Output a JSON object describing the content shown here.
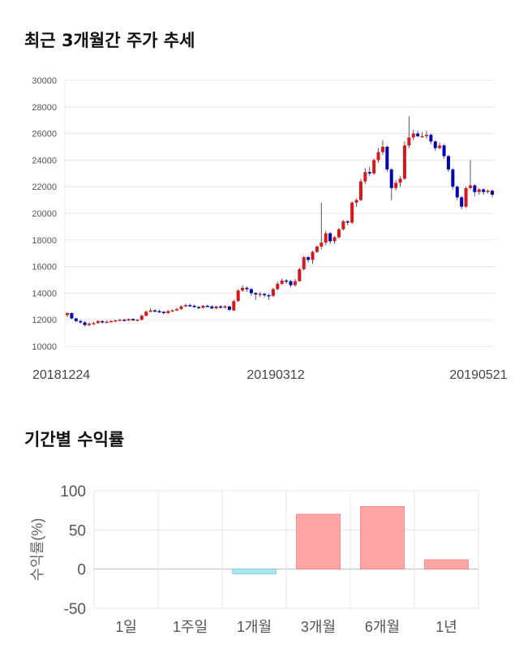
{
  "sections": {
    "price_title": "최근 3개월간 주가 추세",
    "return_title": "기간별 수익률"
  },
  "colors": {
    "up": "#d7191c",
    "down": "#0000b4",
    "positive_bar": "#ffa5a5",
    "negative_bar": "#a9e3ef"
  },
  "chart_data": [
    {
      "type": "candlestick",
      "title": "최근 3개월간 주가 추세",
      "y_ticks": [
        "30000",
        "28000",
        "26000",
        "24000",
        "22000",
        "20000",
        "18000",
        "16000",
        "14000",
        "12000",
        "10000"
      ],
      "ylim": [
        10000,
        30000
      ],
      "x_labels": [
        "20181224",
        "20190312",
        "20190521"
      ],
      "grid": true,
      "candles": [
        [
          12350,
          12500,
          12200,
          12550
        ],
        [
          12500,
          12100,
          12050,
          12550
        ],
        [
          12100,
          11900,
          11800,
          12150
        ],
        [
          11900,
          11800,
          11700,
          12000
        ],
        [
          11800,
          11600,
          11500,
          11900
        ],
        [
          11600,
          11700,
          11500,
          11800
        ],
        [
          11700,
          11750,
          11600,
          11850
        ],
        [
          11750,
          11900,
          11700,
          11950
        ],
        [
          11900,
          11800,
          11700,
          11950
        ],
        [
          11800,
          11850,
          11750,
          11950
        ],
        [
          11850,
          11900,
          11800,
          11950
        ],
        [
          11900,
          11950,
          11850,
          12000
        ],
        [
          11950,
          12000,
          11900,
          12050
        ],
        [
          12000,
          11950,
          11900,
          12050
        ],
        [
          11950,
          12050,
          11900,
          12100
        ],
        [
          12050,
          11950,
          11900,
          12100
        ],
        [
          11950,
          12000,
          11900,
          12050
        ],
        [
          12000,
          12300,
          11950,
          12400
        ],
        [
          12300,
          12600,
          12250,
          12700
        ],
        [
          12600,
          12700,
          12550,
          12850
        ],
        [
          12700,
          12650,
          12550,
          12800
        ],
        [
          12650,
          12600,
          12500,
          12750
        ],
        [
          12600,
          12500,
          12400,
          12650
        ],
        [
          12500,
          12650,
          12450,
          12750
        ],
        [
          12650,
          12700,
          12600,
          12800
        ],
        [
          12700,
          12800,
          12650,
          12900
        ],
        [
          12800,
          13000,
          12750,
          13100
        ],
        [
          13000,
          13100,
          12950,
          13200
        ],
        [
          13100,
          13050,
          12950,
          13200
        ],
        [
          13050,
          12950,
          12900,
          13150
        ],
        [
          12950,
          12900,
          12800,
          13050
        ],
        [
          12900,
          13050,
          12850,
          13100
        ],
        [
          13050,
          13000,
          12950,
          13150
        ],
        [
          13000,
          12850,
          12800,
          13100
        ],
        [
          12850,
          13000,
          12800,
          13050
        ],
        [
          13000,
          12900,
          12850,
          13100
        ],
        [
          12900,
          13000,
          12850,
          13100
        ],
        [
          13000,
          12750,
          12650,
          13050
        ],
        [
          12700,
          13400,
          12650,
          13500
        ],
        [
          13400,
          14200,
          13350,
          14300
        ],
        [
          14200,
          14400,
          14100,
          14600
        ],
        [
          14400,
          14300,
          14100,
          14500
        ],
        [
          14300,
          14000,
          13800,
          14400
        ],
        [
          14000,
          13900,
          13500,
          14100
        ],
        [
          13900,
          13950,
          13700,
          14100
        ],
        [
          13950,
          13850,
          13700,
          14000
        ],
        [
          13850,
          13800,
          13500,
          13950
        ],
        [
          13800,
          14300,
          13700,
          14400
        ],
        [
          14300,
          14700,
          14200,
          14850
        ],
        [
          14700,
          14950,
          14600,
          15100
        ],
        [
          14950,
          14900,
          14700,
          15050
        ],
        [
          14900,
          14600,
          14450,
          15000
        ],
        [
          14600,
          14900,
          14500,
          15050
        ],
        [
          14900,
          15800,
          14850,
          15900
        ],
        [
          15800,
          16700,
          15700,
          16800
        ],
        [
          16700,
          16500,
          16300,
          16800
        ],
        [
          16500,
          17100,
          16200,
          17200
        ],
        [
          17100,
          17500,
          17000,
          17600
        ],
        [
          17500,
          17800,
          17300,
          20800
        ],
        [
          17800,
          18500,
          17600,
          18700
        ],
        [
          18500,
          17900,
          17700,
          18600
        ],
        [
          17900,
          18200,
          17700,
          18300
        ],
        [
          18200,
          18800,
          18100,
          18900
        ],
        [
          18800,
          19400,
          18700,
          19500
        ],
        [
          19400,
          19300,
          19100,
          19500
        ],
        [
          19300,
          20800,
          19200,
          20900
        ],
        [
          20800,
          21000,
          20500,
          21100
        ],
        [
          21000,
          22400,
          20900,
          22600
        ],
        [
          22400,
          23100,
          22200,
          23400
        ],
        [
          23100,
          23000,
          22800,
          23500
        ],
        [
          23000,
          24000,
          22900,
          24100
        ],
        [
          24000,
          24600,
          23800,
          24900
        ],
        [
          24600,
          25000,
          24400,
          25500
        ],
        [
          25000,
          23300,
          23100,
          25100
        ],
        [
          23300,
          21900,
          21000,
          23400
        ],
        [
          21900,
          22300,
          21700,
          22500
        ],
        [
          22300,
          22600,
          22000,
          22800
        ],
        [
          22600,
          25100,
          22500,
          25400
        ],
        [
          25100,
          25700,
          24900,
          27300
        ],
        [
          25700,
          26000,
          25500,
          26300
        ],
        [
          26000,
          25800,
          25700,
          26200
        ],
        [
          25800,
          25800,
          25700,
          26100
        ],
        [
          25800,
          25900,
          25600,
          26200
        ],
        [
          25900,
          25400,
          25200,
          26000
        ],
        [
          25400,
          24900,
          24700,
          25500
        ],
        [
          24900,
          25100,
          24800,
          25300
        ],
        [
          25100,
          24300,
          24100,
          25200
        ],
        [
          24300,
          23300,
          23100,
          24400
        ],
        [
          23300,
          22000,
          21800,
          23400
        ],
        [
          22000,
          21200,
          21000,
          22100
        ],
        [
          21200,
          20500,
          20300,
          21300
        ],
        [
          20500,
          21900,
          20400,
          22000
        ],
        [
          21900,
          22100,
          21800,
          24000
        ],
        [
          22100,
          21600,
          21300,
          22200
        ],
        [
          21600,
          21800,
          21400,
          21900
        ],
        [
          21800,
          21600,
          21400,
          21900
        ],
        [
          21600,
          21700,
          21500,
          21800
        ],
        [
          21700,
          21400,
          21200,
          21800
        ]
      ]
    },
    {
      "type": "bar",
      "title": "기간별 수익률",
      "ylabel": "수익률(%)",
      "ylim": [
        -50,
        100
      ],
      "y_ticks": [
        "100",
        "50",
        "0",
        "-50"
      ],
      "categories": [
        "1일",
        "1주일",
        "1개월",
        "3개월",
        "6개월",
        "1년"
      ],
      "values": [
        0,
        0,
        -6,
        70,
        80,
        12
      ],
      "grid": true
    }
  ]
}
